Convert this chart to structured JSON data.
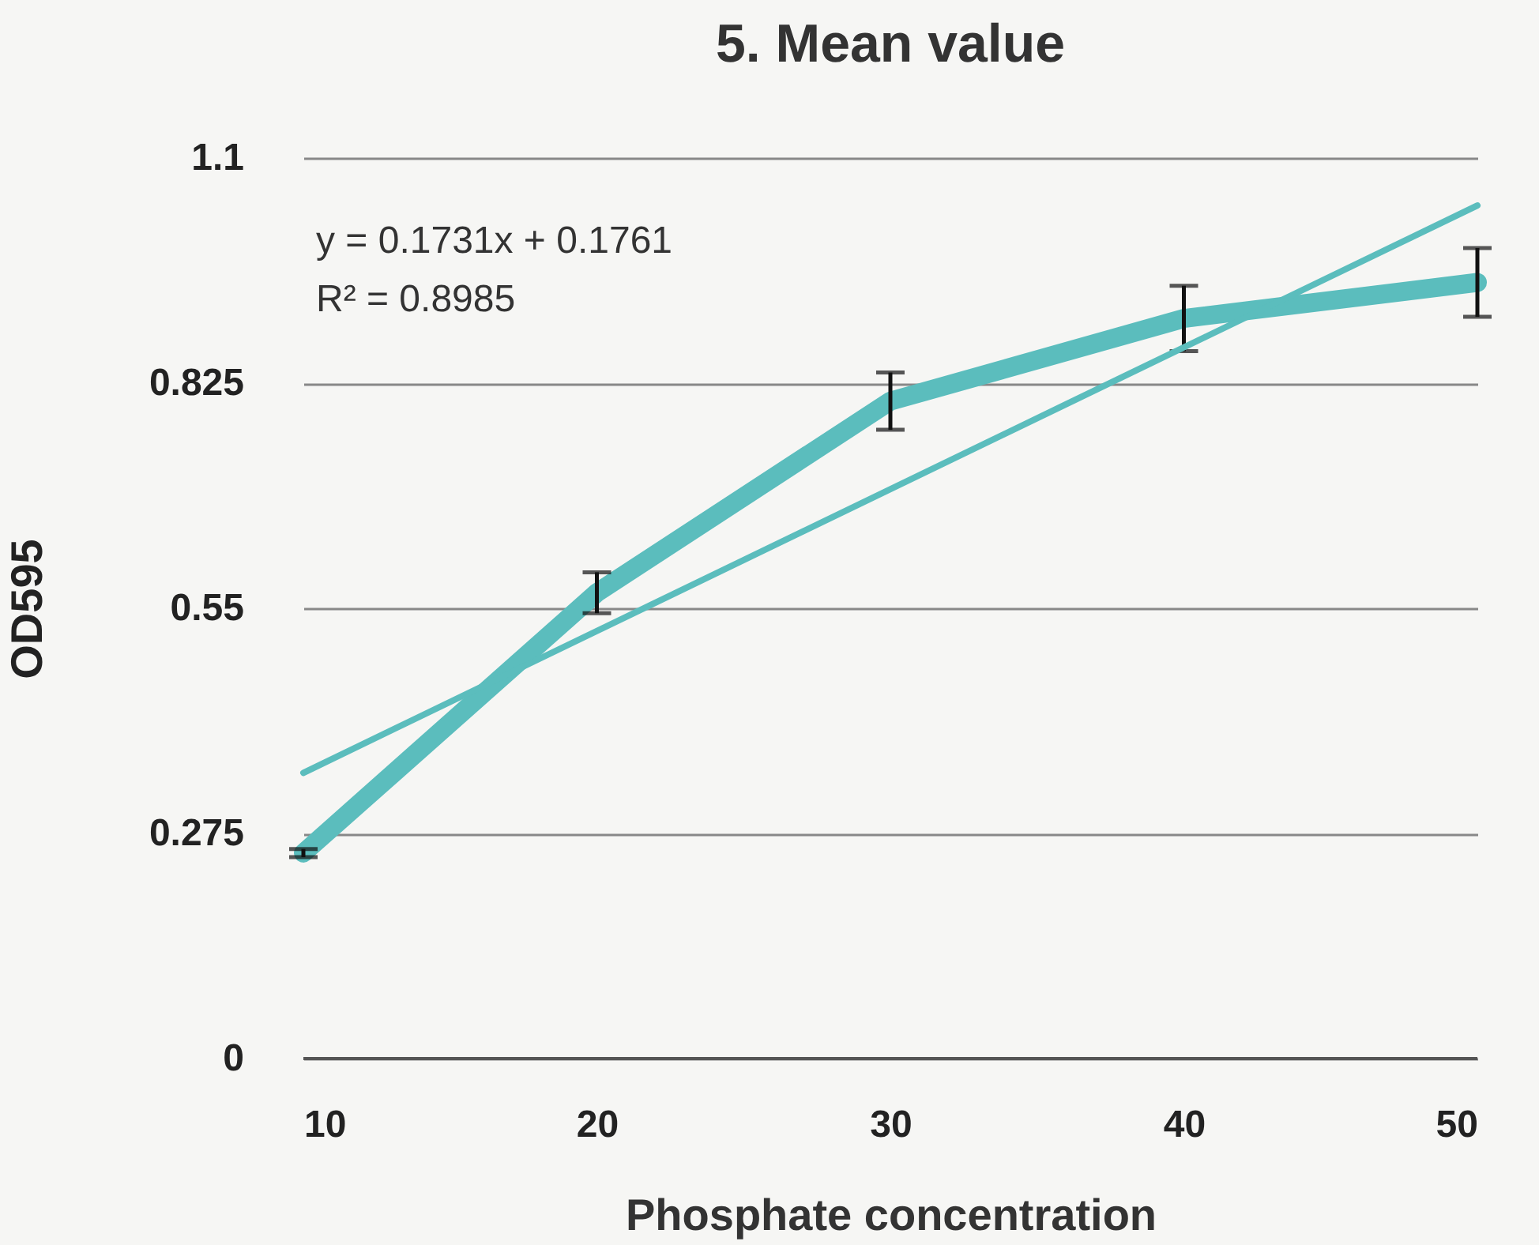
{
  "chart_data": {
    "type": "line",
    "title": "5. Mean value",
    "xlabel": "Phosphate concentration",
    "ylabel": "OD595",
    "x": [
      10,
      20,
      30,
      40,
      50
    ],
    "series": [
      {
        "color": "#5bbdbd",
        "values": [
          0.251,
          0.569,
          0.803,
          0.904,
          0.948
        ],
        "errors": [
          0.005,
          0.025,
          0.035,
          0.04,
          0.042
        ]
      },
      {
        "type": "line",
        "color": "#5bbdbd",
        "x": [
          10,
          50
        ],
        "values": [
          0.349,
          1.042
        ]
      }
    ],
    "annotations": [
      "y = 0.1731x + 0.1761",
      "R² = 0.8985"
    ],
    "xlim": [
      10,
      50
    ],
    "xticks": [
      10,
      20,
      30,
      40,
      50
    ],
    "ylim": [
      0,
      1.1
    ],
    "yticks": [
      0,
      0.275,
      0.55,
      0.825,
      1.1
    ],
    "grid": "y"
  }
}
